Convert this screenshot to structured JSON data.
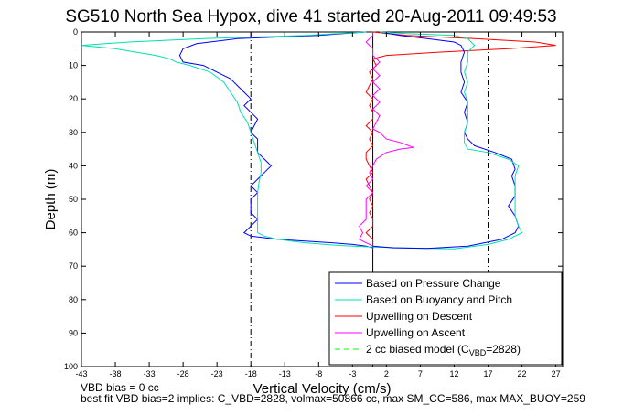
{
  "chart_data": {
    "type": "line",
    "title": "SG510 North Sea Hypox, dive 41 started 20-Aug-2011 09:49:53",
    "xlabel": "Vertical Velocity (cm/s)",
    "ylabel": "Depth (m)",
    "xlim": [
      -43,
      28
    ],
    "ylim": [
      100,
      0
    ],
    "y_reversed": true,
    "xticks": [
      -43,
      -38,
      -33,
      -28,
      -23,
      -18,
      -13,
      -8,
      -3,
      2,
      7,
      12,
      17,
      22,
      27
    ],
    "yticks": [
      0,
      10,
      20,
      30,
      40,
      50,
      60,
      70,
      80,
      90,
      100
    ],
    "grid": false,
    "legend_position": "bottom-right",
    "vertical_lines": [
      {
        "x": -18,
        "style": "dashdot",
        "color": "#000000"
      },
      {
        "x": 17,
        "style": "dashdot",
        "color": "#000000"
      },
      {
        "x": 0,
        "style": "solid",
        "color": "#000000"
      }
    ],
    "series": [
      {
        "name": "Based on Pressure Change",
        "color": "#0000ff",
        "style": "solid",
        "points": [
          [
            -1,
            0
          ],
          [
            -8,
            1
          ],
          [
            -20,
            2
          ],
          [
            -26,
            3.5
          ],
          [
            -28,
            5
          ],
          [
            -28.5,
            7
          ],
          [
            -28,
            9
          ],
          [
            -25,
            10
          ],
          [
            -23,
            12
          ],
          [
            -21,
            14
          ],
          [
            -20,
            16
          ],
          [
            -19,
            18
          ],
          [
            -18,
            20
          ],
          [
            -19,
            22
          ],
          [
            -18,
            24
          ],
          [
            -17,
            26
          ],
          [
            -17.5,
            28
          ],
          [
            -18,
            30
          ],
          [
            -17,
            32
          ],
          [
            -17,
            34
          ],
          [
            -17,
            36
          ],
          [
            -16,
            38
          ],
          [
            -15,
            40
          ],
          [
            -16,
            42
          ],
          [
            -17,
            44
          ],
          [
            -18,
            46
          ],
          [
            -17,
            48
          ],
          [
            -18,
            50
          ],
          [
            -18,
            52
          ],
          [
            -18,
            54
          ],
          [
            -17,
            56
          ],
          [
            -18,
            58
          ],
          [
            -19,
            60
          ],
          [
            -18,
            61
          ],
          [
            -14,
            62
          ],
          [
            -10,
            62.5
          ],
          [
            -6,
            63
          ],
          [
            -3,
            63.5
          ],
          [
            -1,
            64
          ],
          [
            0,
            64.5
          ],
          [
            0,
            64.8
          ]
        ]
      },
      {
        "name": "Based on Buoyancy and Pitch",
        "color": "#00e0b0",
        "style": "solid",
        "points": [
          [
            -1,
            0
          ],
          [
            -10,
            1
          ],
          [
            -25,
            2
          ],
          [
            -36,
            3
          ],
          [
            -43,
            4
          ],
          [
            -38,
            5
          ],
          [
            -35,
            6
          ],
          [
            -32,
            7
          ],
          [
            -30,
            8
          ],
          [
            -29,
            9
          ],
          [
            -27,
            10
          ],
          [
            -24,
            12
          ],
          [
            -22,
            15
          ],
          [
            -21,
            18
          ],
          [
            -20,
            21
          ],
          [
            -19.5,
            24
          ],
          [
            -18.5,
            27
          ],
          [
            -18,
            30
          ],
          [
            -17.5,
            33
          ],
          [
            -17,
            36
          ],
          [
            -16.5,
            39
          ],
          [
            -16.5,
            42
          ],
          [
            -16.8,
            45
          ],
          [
            -17,
            48
          ],
          [
            -17,
            51
          ],
          [
            -17,
            54
          ],
          [
            -17,
            57
          ],
          [
            -17,
            60
          ],
          [
            -16,
            61
          ],
          [
            -14,
            62
          ],
          [
            -10,
            63
          ],
          [
            -5,
            63.8
          ],
          [
            0,
            64.3
          ],
          [
            6,
            64.6
          ],
          [
            12,
            64.8
          ]
        ]
      },
      {
        "name": "Upwelling on Descent",
        "color": "#ff0000",
        "style": "solid",
        "points": [
          [
            0,
            0
          ],
          [
            5,
            1
          ],
          [
            15,
            2
          ],
          [
            24,
            3
          ],
          [
            27,
            4
          ],
          [
            20,
            5
          ],
          [
            10,
            6
          ],
          [
            2,
            7
          ],
          [
            0,
            8
          ],
          [
            0.5,
            10
          ],
          [
            -0.5,
            12
          ],
          [
            0,
            14
          ],
          [
            -0.5,
            16
          ],
          [
            -1,
            18
          ],
          [
            0,
            20
          ],
          [
            -0.5,
            22
          ],
          [
            0,
            24
          ],
          [
            0,
            26
          ],
          [
            -1,
            28
          ],
          [
            0,
            30
          ],
          [
            -0.5,
            32
          ],
          [
            0,
            34
          ],
          [
            -1,
            36
          ],
          [
            -1,
            38
          ],
          [
            -0.5,
            40
          ],
          [
            0,
            42
          ],
          [
            -1,
            44
          ],
          [
            -0.5,
            46
          ],
          [
            0,
            48
          ],
          [
            -0.5,
            50
          ],
          [
            0,
            52
          ],
          [
            -0.5,
            54
          ],
          [
            0,
            56
          ],
          [
            0,
            58
          ],
          [
            -1,
            60
          ],
          [
            0,
            62
          ],
          [
            0,
            64
          ],
          [
            0,
            65
          ]
        ]
      },
      {
        "name": "Upwelling on Ascent",
        "color": "#ff00ff",
        "style": "solid",
        "points": [
          [
            0,
            64
          ],
          [
            -1,
            63
          ],
          [
            -2,
            62
          ],
          [
            -1.5,
            60
          ],
          [
            -2,
            58
          ],
          [
            -1,
            56
          ],
          [
            -1,
            54
          ],
          [
            -1,
            52
          ],
          [
            -1,
            50
          ],
          [
            0,
            48
          ],
          [
            -1,
            46
          ],
          [
            0,
            44
          ],
          [
            -0.5,
            42
          ],
          [
            0,
            40
          ],
          [
            0.5,
            38
          ],
          [
            2,
            36
          ],
          [
            4,
            35
          ],
          [
            6,
            34.5
          ],
          [
            4,
            33
          ],
          [
            2,
            32
          ],
          [
            1,
            30
          ],
          [
            0,
            29
          ],
          [
            0.5,
            27
          ],
          [
            1,
            25
          ],
          [
            0,
            23
          ],
          [
            1,
            21
          ],
          [
            0,
            19
          ],
          [
            1,
            17
          ],
          [
            0,
            15
          ],
          [
            1,
            13
          ],
          [
            0,
            11
          ],
          [
            1,
            9
          ],
          [
            0,
            7
          ],
          [
            0,
            5
          ],
          [
            -1,
            3
          ],
          [
            0,
            1
          ],
          [
            0,
            0
          ]
        ]
      },
      {
        "name": "2 cc biased model (CVBD=2828)",
        "name_main": "2 cc biased model (C",
        "name_sub": "VBD",
        "name_tail": "=2828)",
        "color": "#00ff00",
        "style": "dashed",
        "points": []
      },
      {
        "name": "",
        "color": "#0000ff",
        "style": "solid",
        "points": [
          [
            0,
            64
          ],
          [
            3,
            64.5
          ],
          [
            8,
            64.7
          ],
          [
            14,
            64
          ],
          [
            19,
            62
          ],
          [
            21,
            60
          ],
          [
            21.5,
            58
          ],
          [
            21,
            55
          ],
          [
            20,
            52
          ],
          [
            21,
            49
          ],
          [
            21,
            46
          ],
          [
            20.5,
            43
          ],
          [
            21,
            41
          ],
          [
            20.5,
            38
          ],
          [
            18,
            36
          ],
          [
            15,
            34
          ],
          [
            14,
            32
          ],
          [
            13.5,
            30
          ],
          [
            14,
            27
          ],
          [
            13.5,
            24
          ],
          [
            14,
            21
          ],
          [
            13,
            18
          ],
          [
            13.5,
            15
          ],
          [
            13,
            12
          ],
          [
            13,
            9
          ],
          [
            13.5,
            6
          ],
          [
            13,
            4
          ],
          [
            12,
            3
          ],
          [
            8,
            2
          ],
          [
            4,
            1
          ],
          [
            1,
            0
          ]
        ]
      },
      {
        "name": "",
        "color": "#00e0b0",
        "style": "solid",
        "points": [
          [
            12,
            64.8
          ],
          [
            17,
            63.5
          ],
          [
            20,
            62
          ],
          [
            22,
            60
          ],
          [
            21.5,
            58
          ],
          [
            21,
            55
          ],
          [
            21,
            52
          ],
          [
            21,
            49
          ],
          [
            21,
            46
          ],
          [
            21,
            43
          ],
          [
            21.5,
            40
          ],
          [
            20,
            38
          ],
          [
            17,
            36
          ],
          [
            14,
            35
          ],
          [
            13.5,
            33
          ],
          [
            13.5,
            30
          ],
          [
            14,
            27
          ],
          [
            14,
            24
          ],
          [
            14,
            21
          ],
          [
            13.5,
            18
          ],
          [
            14,
            15
          ],
          [
            13.5,
            12
          ],
          [
            14,
            9
          ],
          [
            14,
            6
          ],
          [
            15,
            4
          ],
          [
            14,
            2
          ],
          [
            12,
            1
          ],
          [
            5,
            0.5
          ],
          [
            1,
            0
          ]
        ]
      }
    ]
  },
  "footer": {
    "line1": "VBD bias = 0 cc",
    "line2": "best fit VBD bias=2 implies: C_VBD=2828, volmax=50866 cc, max SM_CC=586, max MAX_BUOY=259"
  }
}
